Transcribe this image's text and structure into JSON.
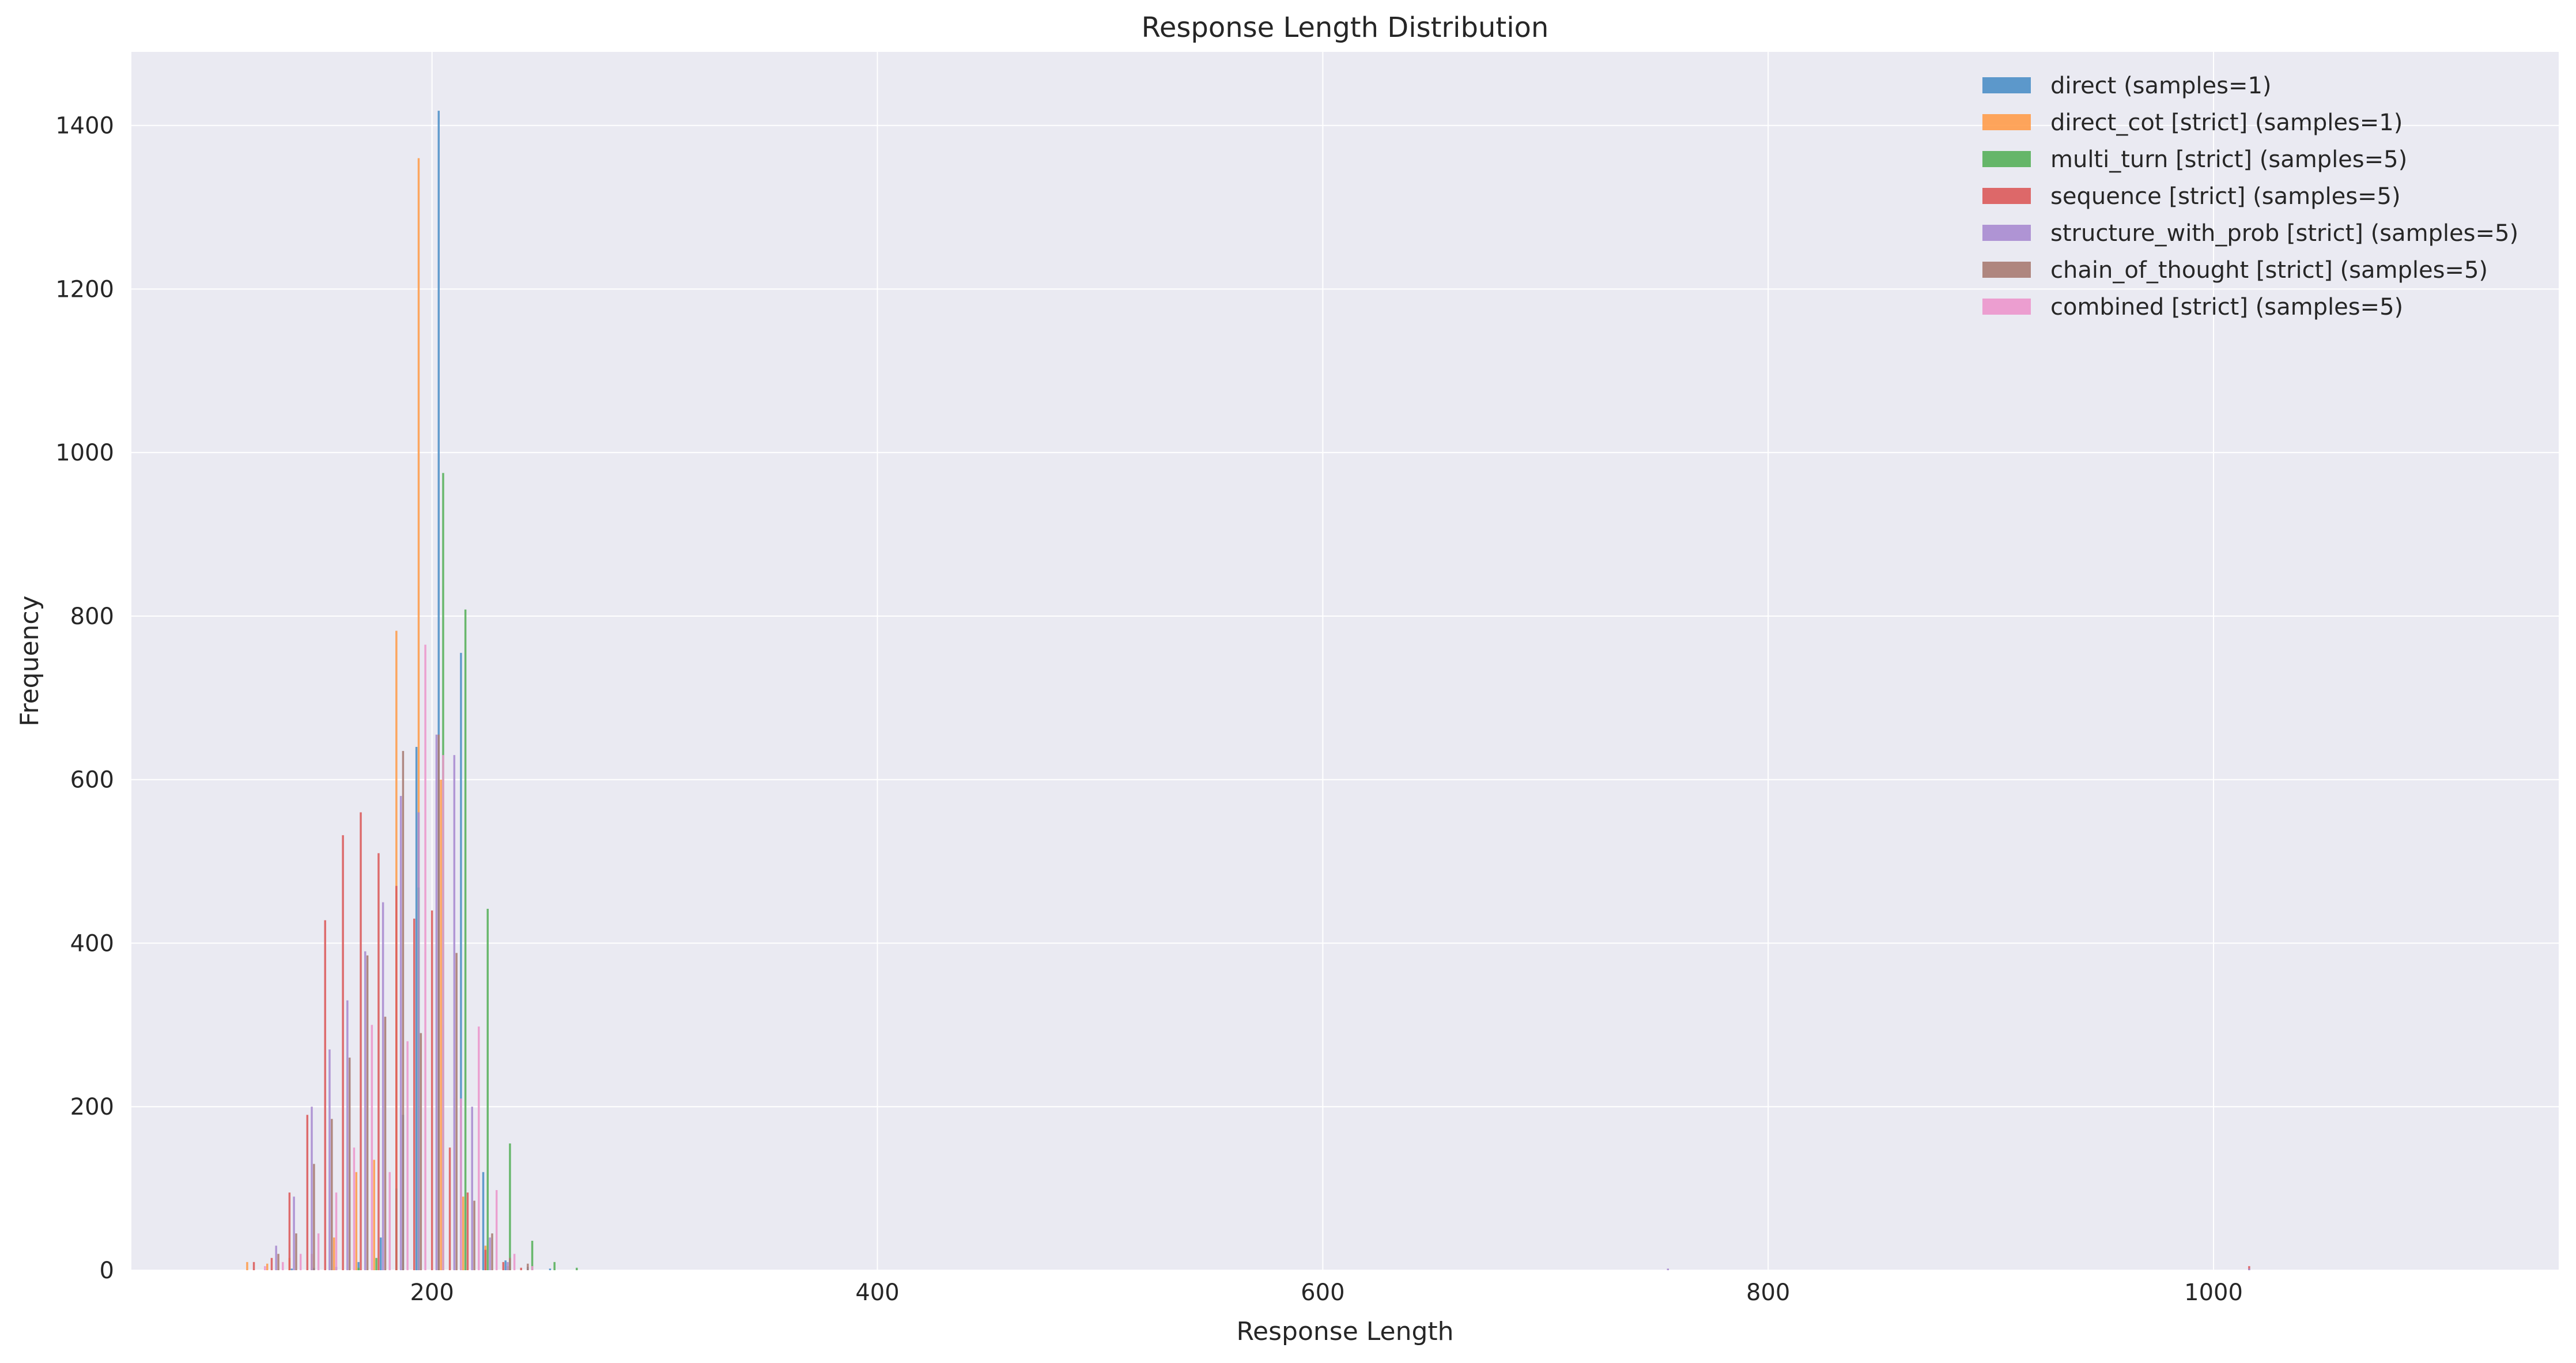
{
  "chart_data": {
    "type": "bar",
    "title": "Response Length Distribution",
    "xlabel": "Response Length",
    "ylabel": "Frequency",
    "xlim": [
      65,
      1155
    ],
    "ylim": [
      0,
      1490
    ],
    "x_ticks": [
      "200",
      "400",
      "600",
      "800",
      "1000"
    ],
    "y_ticks": [
      "0",
      "200",
      "400",
      "600",
      "800",
      "1000",
      "1200",
      "1400"
    ],
    "x_tick_values": [
      200,
      400,
      600,
      800,
      1000
    ],
    "y_tick_values": [
      0,
      200,
      400,
      600,
      800,
      1000,
      1200,
      1400
    ],
    "grid": true,
    "legend_position": "top-right",
    "bar_width": 0.9,
    "series": [
      {
        "name": "direct (samples=1)",
        "color": "#4c8fc7",
        "x": [
          137,
          147,
          157,
          167,
          177,
          187,
          193,
          203,
          213,
          223,
          233,
          243,
          253
        ],
        "values": [
          2,
          3,
          4,
          10,
          40,
          190,
          640,
          1418,
          755,
          120,
          12,
          4,
          2
        ]
      },
      {
        "name": "direct_cot [strict] (samples=1)",
        "color": "#ff9c4a",
        "x": [
          117,
          126,
          136,
          146,
          156,
          166,
          174,
          184,
          194,
          204,
          214,
          224,
          234
        ],
        "values": [
          10,
          8,
          15,
          20,
          40,
          120,
          135,
          782,
          1360,
          600,
          90,
          30,
          5
        ]
      },
      {
        "name": "multi_turn [strict] (samples=5)",
        "color": "#57b05a",
        "x": [
          167,
          175,
          184,
          194,
          205,
          215,
          225,
          235,
          245,
          255,
          265
        ],
        "values": [
          3,
          15,
          100,
          468,
          975,
          808,
          442,
          155,
          36,
          10,
          3
        ]
      },
      {
        "name": "sequence [strict] (samples=5)",
        "color": "#dc5a5a",
        "x": [
          120,
          128,
          136,
          144,
          152,
          160,
          168,
          176,
          184,
          192,
          200,
          208,
          216,
          224,
          232,
          240,
          1016
        ],
        "values": [
          10,
          15,
          95,
          190,
          428,
          532,
          560,
          510,
          470,
          430,
          440,
          150,
          95,
          25,
          10,
          3,
          5
        ]
      },
      {
        "name": "structure_with_prob [strict] (samples=5)",
        "color": "#a98bd0",
        "x": [
          130,
          138,
          146,
          154,
          162,
          170,
          178,
          186,
          194,
          202,
          210,
          218,
          226,
          234,
          755,
          1016
        ],
        "values": [
          30,
          90,
          200,
          270,
          330,
          390,
          450,
          580,
          560,
          655,
          630,
          200,
          40,
          10,
          2,
          2
        ]
      },
      {
        "name": "chain_of_thought [strict] (samples=5)",
        "color": "#a87b72",
        "x": [
          131,
          139,
          147,
          155,
          163,
          171,
          179,
          187,
          195,
          203,
          211,
          219,
          227,
          235,
          243
        ],
        "values": [
          20,
          45,
          130,
          185,
          260,
          385,
          310,
          635,
          290,
          655,
          388,
          85,
          45,
          15,
          8
        ]
      },
      {
        "name": "combined [strict] (samples=5)",
        "color": "#ec96cc",
        "x": [
          125,
          133,
          141,
          149,
          157,
          165,
          173,
          181,
          189,
          197,
          205,
          213,
          221,
          229,
          237,
          245
        ],
        "values": [
          5,
          10,
          20,
          45,
          95,
          150,
          300,
          120,
          280,
          765,
          630,
          210,
          298,
          98,
          20,
          5
        ]
      }
    ]
  }
}
